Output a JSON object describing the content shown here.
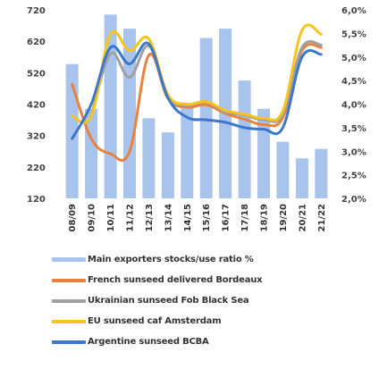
{
  "chart_data": {
    "type": "bar+line",
    "categories": [
      "08/09",
      "09/10",
      "10/11",
      "11/12",
      "12/13",
      "13/14",
      "14/15",
      "15/16",
      "16/17",
      "17/18",
      "18/19",
      "19/20",
      "20/21",
      "21/22"
    ],
    "left_axis": {
      "ylim": [
        120,
        720
      ],
      "ticks": [
        "720",
        "620",
        "520",
        "420",
        "320",
        "220",
        "120"
      ]
    },
    "right_axis": {
      "ylim": [
        2.0,
        6.0
      ],
      "ticks": [
        "6,0%",
        "5,5%",
        "5,0%",
        "4,5%",
        "4,0%",
        "3,5%",
        "3,0%",
        "2,5%",
        "2,0%"
      ]
    },
    "bars": {
      "name": "Main exporters stocks/use ratio %",
      "axis": "right",
      "color": "#a9c4ec",
      "values": [
        4.85,
        3.9,
        5.9,
        5.6,
        3.7,
        3.4,
        3.95,
        5.4,
        5.6,
        4.5,
        3.9,
        3.2,
        2.85,
        3.05
      ]
    },
    "series": [
      {
        "name": "French sunseed delivered Bordeaux",
        "axis": "left",
        "color": "#e8823e",
        "values": [
          483,
          310,
          262,
          270,
          575,
          438,
          410,
          418,
          390,
          372,
          355,
          377,
          590,
          600
        ]
      },
      {
        "name": "Ukrainian sunseed Fob Black Sea",
        "axis": "left",
        "color": "#a0a0a0",
        "values": [
          null,
          382,
          580,
          505,
          605,
          445,
          416,
          428,
          395,
          385,
          370,
          388,
          600,
          608
        ]
      },
      {
        "name": "EU sunseed caf Amsterdam",
        "axis": "left",
        "color": "#f7c41d",
        "values": [
          382,
          382,
          642,
          590,
          628,
          450,
          420,
          428,
          400,
          388,
          375,
          398,
          655,
          642
        ]
      },
      {
        "name": "Argentine sunseed BCBA",
        "axis": "left",
        "color": "#3b78cc",
        "values": [
          310,
          420,
          600,
          548,
          612,
          440,
          378,
          370,
          362,
          345,
          340,
          345,
          570,
          578
        ]
      }
    ]
  }
}
